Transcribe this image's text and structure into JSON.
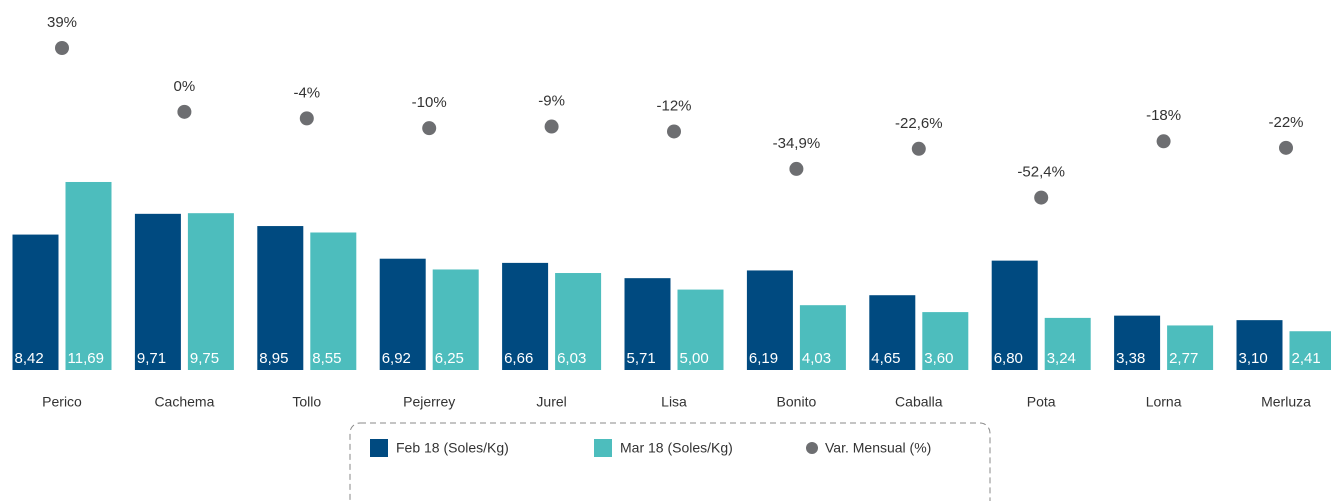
{
  "chart_data": {
    "type": "bar",
    "categories": [
      "Perico",
      "Cachema",
      "Tollo",
      "Pejerrey",
      "Jurel",
      "Lisa",
      "Bonito",
      "Caballa",
      "Pota",
      "Lorna",
      "Merluza"
    ],
    "series": [
      {
        "name": "Feb 18 (Soles/Kg)",
        "color": "#004a80",
        "values": [
          8.42,
          9.71,
          8.95,
          6.92,
          6.66,
          5.71,
          6.19,
          4.65,
          6.8,
          3.38,
          3.1
        ],
        "value_labels": [
          "8,42",
          "9,71",
          "8,95",
          "6,92",
          "6,66",
          "5,71",
          "6,19",
          "4,65",
          "6,80",
          "3,38",
          "3,10"
        ]
      },
      {
        "name": "Mar 18 (Soles/Kg)",
        "color": "#4dbdbd",
        "values": [
          11.69,
          9.75,
          8.55,
          6.25,
          6.03,
          5.0,
          4.03,
          3.6,
          3.24,
          2.77,
          2.41
        ],
        "value_labels": [
          "11,69",
          "9,75",
          "8,55",
          "6,25",
          "6,03",
          "5,00",
          "4,03",
          "3,60",
          "3,24",
          "2,77",
          "2,41"
        ]
      },
      {
        "name": "Var. Mensual (%)",
        "color": "#6d6e71",
        "axis": "y2",
        "kind": "scatter",
        "values": [
          39,
          0,
          -4,
          -10,
          -9,
          -12,
          -34.9,
          -22.6,
          -52.4,
          -18,
          -22
        ],
        "value_labels": [
          "39%",
          "0%",
          "-4%",
          "-10%",
          "-9%",
          "-12%",
          "-34,9%",
          "-22,6%",
          "-52,4%",
          "-18%",
          "-22%"
        ]
      }
    ],
    "ylim": [
      0,
      12
    ],
    "y2lim": [
      -60,
      50
    ],
    "legend": "bottom"
  }
}
